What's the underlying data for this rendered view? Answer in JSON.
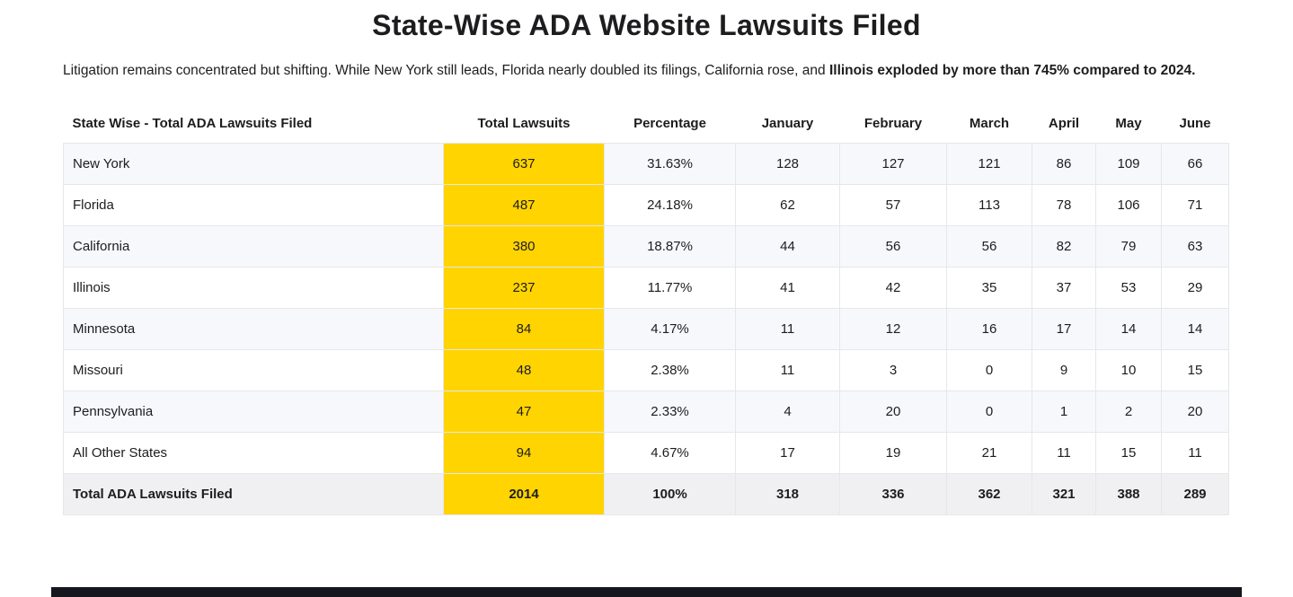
{
  "page": {
    "title": "State-Wise ADA Website Lawsuits Filed",
    "intro": {
      "normal": "Litigation remains concentrated but shifting. While New York still leads, Florida nearly doubled its filings, California rose, and ",
      "bold": "Illinois exploded by more than 745% compared to 2024."
    }
  },
  "chart_data": {
    "type": "table",
    "title": "State-Wise ADA Website Lawsuits Filed",
    "columns": [
      "State Wise - Total ADA Lawsuits Filed",
      "Total Lawsuits",
      "Percentage",
      "January",
      "February",
      "March",
      "April",
      "May",
      "June"
    ],
    "rows": [
      {
        "state": "New York",
        "total": "637",
        "percentage": "31.63%",
        "months": [
          "128",
          "127",
          "121",
          "86",
          "109",
          "66"
        ]
      },
      {
        "state": "Florida",
        "total": "487",
        "percentage": "24.18%",
        "months": [
          "62",
          "57",
          "113",
          "78",
          "106",
          "71"
        ]
      },
      {
        "state": "California",
        "total": "380",
        "percentage": "18.87%",
        "months": [
          "44",
          "56",
          "56",
          "82",
          "79",
          "63"
        ]
      },
      {
        "state": "Illinois",
        "total": "237",
        "percentage": "11.77%",
        "months": [
          "41",
          "42",
          "35",
          "37",
          "53",
          "29"
        ]
      },
      {
        "state": "Minnesota",
        "total": "84",
        "percentage": "4.17%",
        "months": [
          "11",
          "12",
          "16",
          "17",
          "14",
          "14"
        ]
      },
      {
        "state": "Missouri",
        "total": "48",
        "percentage": "2.38%",
        "months": [
          "11",
          "3",
          "0",
          "9",
          "10",
          "15"
        ]
      },
      {
        "state": "Pennsylvania",
        "total": "47",
        "percentage": "2.33%",
        "months": [
          "4",
          "20",
          "0",
          "1",
          "2",
          "20"
        ]
      },
      {
        "state": "All Other States",
        "total": "94",
        "percentage": "4.67%",
        "months": [
          "17",
          "19",
          "21",
          "11",
          "15",
          "11"
        ]
      }
    ],
    "total_row": {
      "state": "Total ADA Lawsuits Filed",
      "total": "2014",
      "percentage": "100%",
      "months": [
        "318",
        "336",
        "362",
        "321",
        "388",
        "289"
      ]
    }
  },
  "colors": {
    "highlight_yellow": "#ffd400",
    "row_stripe": "#f7f8fc",
    "total_row_bg": "#f0f0f3",
    "border": "#e7e7ea",
    "text": "#1d1d1f",
    "footer_bar": "#16161e"
  }
}
